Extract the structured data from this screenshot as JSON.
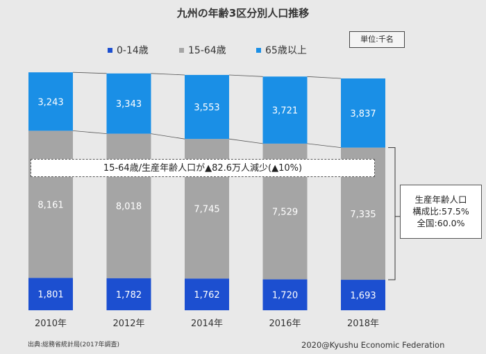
{
  "title": "九州の年齢3区分別人口推移",
  "unit_label": "単位:千名",
  "annotation": "15-64歳/生産年齢人口が▲82.6万人減少(▲10%)",
  "summary": {
    "line1": "生産年齢人口",
    "line2": "構成比:57.5%",
    "line3": "全国:60.0%"
  },
  "source_note": "出典:総務省統計局(2017年調査)",
  "copyright": "2020@Kyushu Economic Federation",
  "colors": {
    "age_0_14": "#1c4fd0",
    "age_15_64": "#a5a5a5",
    "age_65_plus": "#1a8fe6"
  },
  "chart_data": {
    "type": "bar",
    "stacked": true,
    "categories": [
      "2010年",
      "2012年",
      "2014年",
      "2016年",
      "2018年"
    ],
    "series": [
      {
        "name": "0-14歳",
        "values": [
          1801,
          1782,
          1762,
          1720,
          1693
        ],
        "labels": [
          "1,801",
          "1,782",
          "1,762",
          "1,720",
          "1,693"
        ]
      },
      {
        "name": "15-64歳",
        "values": [
          8161,
          8018,
          7745,
          7529,
          7335
        ],
        "labels": [
          "8,161",
          "8,018",
          "7,745",
          "7,529",
          "7,335"
        ]
      },
      {
        "name": "65歳以上",
        "values": [
          3243,
          3343,
          3553,
          3721,
          3837
        ],
        "labels": [
          "3,243",
          "3,343",
          "3,553",
          "3,721",
          "3,837"
        ]
      }
    ],
    "legend_position": "top-left",
    "grid": false
  }
}
